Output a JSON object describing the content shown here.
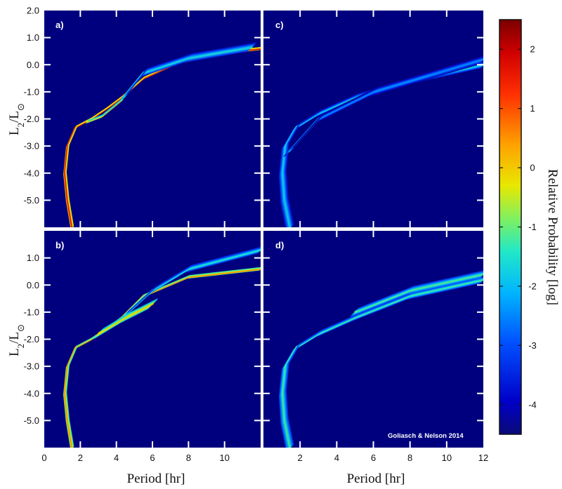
{
  "chart_data": {
    "type": "heatmap",
    "xlabel": "Period [hr]",
    "ylabel": "L2/L⊙",
    "ylabel_main": "L",
    "ylabel_sub": "2",
    "ylabel_mid": "/L",
    "ylabel_sun": "⊙",
    "credit": "Goliasch & Nelson 2014",
    "colorbar": {
      "label": "Relative Probability [log]",
      "range": [
        -4.5,
        2.5
      ],
      "ticks": [
        "2",
        "1",
        "0",
        "-1",
        "-2",
        "-3",
        "-4"
      ],
      "tick_values": [
        2,
        1,
        0,
        -1,
        -2,
        -3,
        -4
      ]
    },
    "y_ticks_top": [
      "2.0",
      "1.0",
      "0.0",
      "-1.0",
      "-2.0",
      "-3.0",
      "-4.0",
      "-5.0"
    ],
    "y_ticks_bottom": [
      "1.0",
      "0.0",
      "-1.0",
      "-2.0",
      "-3.0",
      "-4.0",
      "-5.0"
    ],
    "x_ticks_left": [
      "0",
      "2",
      "4",
      "6",
      "8",
      "10"
    ],
    "x_ticks_right": [
      "2",
      "4",
      "6",
      "8",
      "10",
      "12"
    ],
    "xlim": [
      0,
      12
    ],
    "ylim": [
      -6.0,
      2.0
    ],
    "panels": [
      {
        "label": "a)",
        "tracks": [
          {
            "points": [
              [
                1.55,
                -6.0
              ],
              [
                1.3,
                -5.0
              ],
              [
                1.15,
                -4.0
              ],
              [
                1.3,
                -3.0
              ],
              [
                1.75,
                -2.3
              ],
              [
                2.6,
                -2.0
              ],
              [
                3.5,
                -1.6
              ],
              [
                4.3,
                -1.2
              ],
              [
                5.5,
                -0.5
              ],
              [
                7.5,
                0.1
              ],
              [
                10.0,
                0.45
              ],
              [
                12.0,
                0.6
              ]
            ],
            "level": 2.0,
            "spread": 0.07
          },
          {
            "points": [
              [
                4.4,
                -1.2
              ],
              [
                5.5,
                -0.3
              ],
              [
                8.0,
                0.25
              ],
              [
                11.5,
                0.65
              ]
            ],
            "level": -1.4,
            "spread": 0.25
          },
          {
            "points": [
              [
                2.4,
                -2.1
              ],
              [
                3.2,
                -1.9
              ],
              [
                4.3,
                -1.3
              ]
            ],
            "level": 0.5,
            "spread": 0.08
          }
        ]
      },
      {
        "label": "b)",
        "tracks": [
          {
            "points": [
              [
                1.55,
                -6.0
              ],
              [
                1.3,
                -5.0
              ],
              [
                1.15,
                -4.0
              ],
              [
                1.3,
                -3.0
              ],
              [
                1.75,
                -2.3
              ],
              [
                2.6,
                -2.0
              ],
              [
                3.5,
                -1.6
              ],
              [
                4.3,
                -1.2
              ],
              [
                5.5,
                -0.4
              ],
              [
                8.0,
                0.3
              ],
              [
                12.0,
                0.6
              ]
            ],
            "level": 1.0,
            "spread": 0.08
          },
          {
            "points": [
              [
                4.5,
                -1.1
              ],
              [
                6.0,
                -0.2
              ],
              [
                8.0,
                0.6
              ],
              [
                12.0,
                1.3
              ]
            ],
            "level": -1.2,
            "spread": 0.2
          },
          {
            "points": [
              [
                3.0,
                -1.8
              ],
              [
                4.5,
                -1.2
              ],
              [
                6.0,
                -0.7
              ]
            ],
            "level": 0.4,
            "spread": 0.3
          }
        ]
      },
      {
        "label": "c)",
        "tracks": [
          {
            "points": [
              [
                1.45,
                -6.0
              ],
              [
                1.15,
                -5.0
              ],
              [
                1.05,
                -4.0
              ],
              [
                1.2,
                -3.0
              ],
              [
                1.8,
                -2.3
              ],
              [
                3.0,
                -1.8
              ],
              [
                5.0,
                -1.2
              ],
              [
                8.0,
                -0.6
              ],
              [
                12.0,
                0.0
              ]
            ],
            "level": -1.5,
            "spread": 0.2
          },
          {
            "points": [
              [
                1.4,
                -3.2
              ],
              [
                3.0,
                -2.0
              ],
              [
                6.0,
                -1.0
              ],
              [
                12.0,
                0.2
              ]
            ],
            "level": -2.2,
            "spread": 0.3
          }
        ]
      },
      {
        "label": "d)",
        "tracks": [
          {
            "points": [
              [
                1.45,
                -6.0
              ],
              [
                1.15,
                -5.0
              ],
              [
                1.05,
                -4.0
              ],
              [
                1.2,
                -3.0
              ],
              [
                1.8,
                -2.3
              ],
              [
                3.0,
                -1.8
              ],
              [
                5.0,
                -1.2
              ],
              [
                8.0,
                -0.4
              ],
              [
                12.0,
                0.2
              ]
            ],
            "level": -1.0,
            "spread": 0.2
          },
          {
            "points": [
              [
                5.0,
                -1.0
              ],
              [
                8.0,
                -0.2
              ],
              [
                12.0,
                0.4
              ]
            ],
            "level": -0.9,
            "spread": 0.25
          }
        ]
      }
    ]
  }
}
